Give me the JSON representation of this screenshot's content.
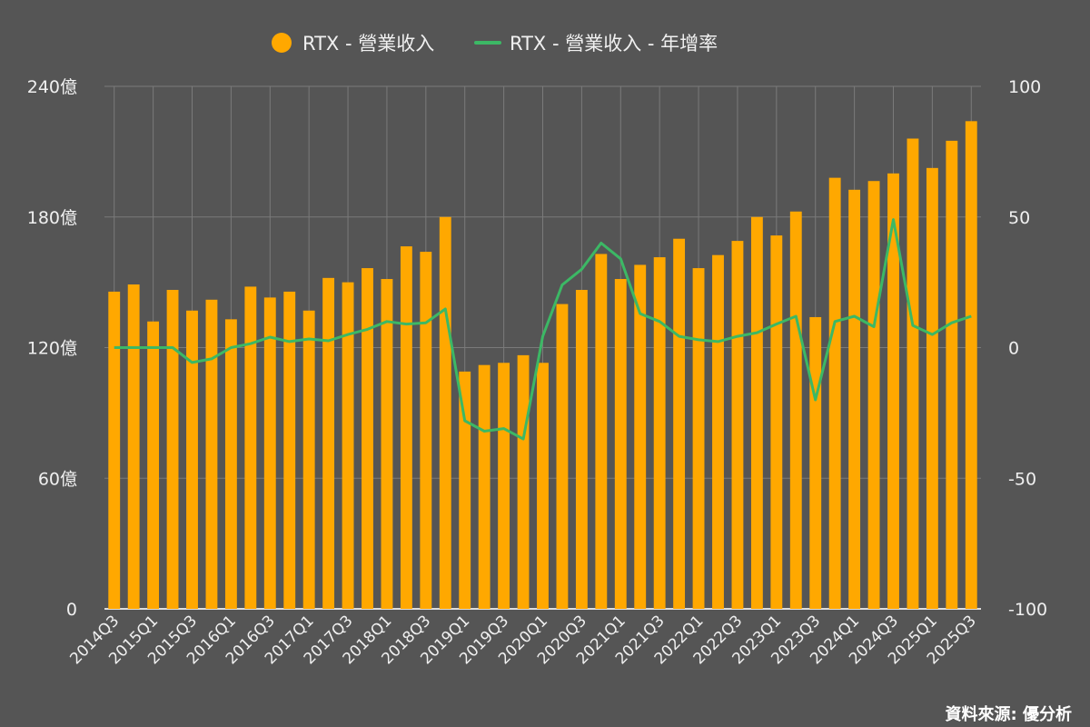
{
  "chart_data": {
    "type": "bar",
    "title": "",
    "legend": [
      "RTX - 營業收入",
      "RTX - 營業收入 - 年增率"
    ],
    "legend_position": "top-center",
    "source": "資料來源: 優分析",
    "colors": {
      "bar": "#FFA800",
      "line": "#3CB865",
      "background": "#555555",
      "grid": "#7a7a7a"
    },
    "categories": [
      "2014Q3",
      "2014Q4",
      "2015Q1",
      "2015Q2",
      "2015Q3",
      "2015Q4",
      "2016Q1",
      "2016Q2",
      "2016Q3",
      "2016Q4",
      "2017Q1",
      "2017Q2",
      "2017Q3",
      "2017Q4",
      "2018Q1",
      "2018Q2",
      "2018Q3",
      "2018Q4",
      "2019Q1",
      "2019Q2",
      "2019Q3",
      "2019Q4",
      "2020Q1",
      "2020Q2",
      "2020Q3",
      "2020Q4",
      "2021Q1",
      "2021Q2",
      "2021Q3",
      "2021Q4",
      "2022Q1",
      "2022Q2",
      "2022Q3",
      "2022Q4",
      "2023Q1",
      "2023Q2",
      "2023Q3",
      "2023Q4",
      "2024Q1",
      "2024Q2",
      "2024Q3",
      "2024Q4",
      "2025Q1",
      "2025Q2",
      "2025Q3"
    ],
    "x_tick_labels": [
      "2014Q3",
      "2015Q1",
      "2015Q3",
      "2016Q1",
      "2016Q3",
      "2017Q1",
      "2017Q3",
      "2018Q1",
      "2018Q3",
      "2019Q1",
      "2019Q3",
      "2020Q1",
      "2020Q3",
      "2021Q1",
      "2021Q3",
      "2022Q1",
      "2022Q3",
      "2023Q1",
      "2023Q3",
      "2024Q1",
      "2024Q3",
      "2025Q1",
      "2025Q3"
    ],
    "series": [
      {
        "name": "RTX - 營業收入",
        "type": "bar",
        "axis": "left",
        "unit": "億",
        "values": [
          145.7,
          149,
          132,
          146.5,
          137,
          142,
          133,
          148,
          143,
          145.7,
          137,
          152,
          150,
          156.5,
          151.5,
          166.5,
          164,
          180,
          109,
          112,
          113,
          116.5,
          113,
          140,
          146.5,
          163,
          151.5,
          158,
          161.5,
          170,
          156.5,
          162.5,
          169,
          180,
          171.5,
          182.5,
          134,
          198,
          192.5,
          196.5,
          200,
          216,
          202.5,
          215,
          224
        ]
      },
      {
        "name": "RTX - 營業收入 - 年增率",
        "type": "line",
        "axis": "right",
        "unit": "%",
        "values": [
          0,
          0,
          0,
          0,
          -5.7,
          -4.3,
          0,
          1.5,
          4,
          2.3,
          3.3,
          2.6,
          5,
          7,
          10,
          9,
          9.5,
          14.8,
          -28,
          -32,
          -31,
          -35,
          4.3,
          24,
          30,
          40,
          34,
          13,
          10,
          4.3,
          3,
          2.3,
          4.3,
          5.7,
          9,
          12,
          -20,
          10,
          12,
          8,
          49,
          8.5,
          5,
          9.5,
          12
        ]
      }
    ],
    "y_left": {
      "ylim": [
        0,
        240
      ],
      "ticks": [
        "0",
        "60億",
        "120億",
        "180億",
        "240億"
      ],
      "tick_values": [
        0,
        60,
        120,
        180,
        240
      ]
    },
    "y_right": {
      "ylim": [
        -100,
        100
      ],
      "ticks": [
        "-100",
        "-50",
        "0",
        "50",
        "100"
      ],
      "tick_values": [
        -100,
        -50,
        0,
        50,
        100
      ]
    },
    "grid": true
  }
}
